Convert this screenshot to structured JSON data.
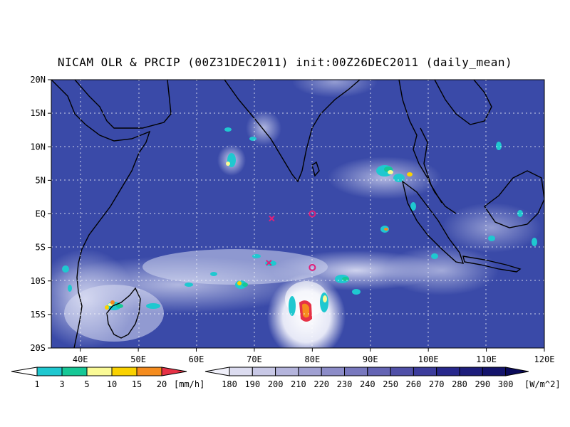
{
  "title": "NICAM OLR & PRCIP (00Z31DEC2011) init:00Z26DEC2011 (daily_mean)",
  "map": {
    "lon_range": [
      35,
      120
    ],
    "lat_range": [
      -20,
      20
    ],
    "lat_ticks": [
      "20N",
      "15N",
      "10N",
      "5N",
      "EQ",
      "5S",
      "10S",
      "15S",
      "20S"
    ],
    "lon_ticks": [
      "40E",
      "50E",
      "60E",
      "70E",
      "80E",
      "90E",
      "100E",
      "110E",
      "120E"
    ],
    "colors": {
      "ocean": "#3a4aa8",
      "cloud": "#dfe1f2",
      "coast": "#000000",
      "marker": "#e0207a"
    }
  },
  "markers": [
    {
      "symbol": "x",
      "lon": 73,
      "lat": -0.7
    },
    {
      "symbol": "o",
      "lon": 80,
      "lat": 0
    },
    {
      "symbol": "x",
      "lon": 72.5,
      "lat": -7.3
    },
    {
      "symbol": "o",
      "lon": 80,
      "lat": -8
    }
  ],
  "precip_colorbar": {
    "labels": [
      "1",
      "3",
      "5",
      "10",
      "15",
      "20"
    ],
    "unit": "[mm/h]",
    "colors": [
      "#1fc8d0",
      "#16c896",
      "#fafa96",
      "#fad200",
      "#f58c1e",
      "#e63246"
    ]
  },
  "olr_colorbar": {
    "labels": [
      "180",
      "190",
      "200",
      "210",
      "220",
      "230",
      "240",
      "250",
      "260",
      "270",
      "280",
      "290",
      "300"
    ],
    "unit": "[W/m^2]",
    "colors": [
      "#f0f0fa",
      "#dcdcf0",
      "#c8c8e6",
      "#b4b4dc",
      "#a0a0d2",
      "#8c8cc8",
      "#7878be",
      "#6464b4",
      "#5050a8",
      "#3c3c9c",
      "#28288c",
      "#1e1e7c",
      "#14146c",
      "#0a0a5a"
    ]
  }
}
